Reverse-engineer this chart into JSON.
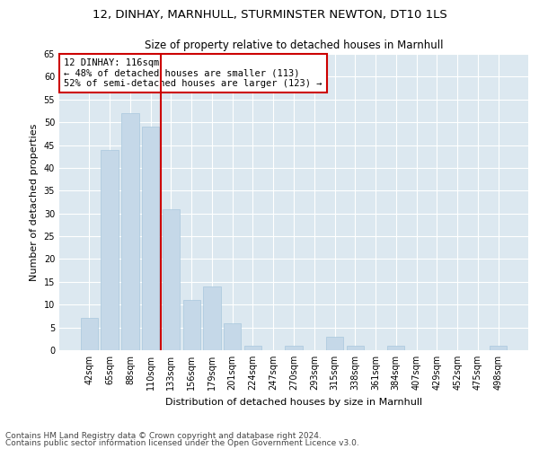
{
  "title1": "12, DINHAY, MARNHULL, STURMINSTER NEWTON, DT10 1LS",
  "title2": "Size of property relative to detached houses in Marnhull",
  "xlabel": "Distribution of detached houses by size in Marnhull",
  "ylabel": "Number of detached properties",
  "categories": [
    "42sqm",
    "65sqm",
    "88sqm",
    "110sqm",
    "133sqm",
    "156sqm",
    "179sqm",
    "201sqm",
    "224sqm",
    "247sqm",
    "270sqm",
    "293sqm",
    "315sqm",
    "338sqm",
    "361sqm",
    "384sqm",
    "407sqm",
    "429sqm",
    "452sqm",
    "475sqm",
    "498sqm"
  ],
  "values": [
    7,
    44,
    52,
    49,
    31,
    11,
    14,
    6,
    1,
    0,
    1,
    0,
    3,
    1,
    0,
    1,
    0,
    0,
    0,
    0,
    1
  ],
  "bar_color": "#c5d8e8",
  "bar_edge_color": "#a8c8de",
  "vline_color": "#cc0000",
  "annotation_text": "12 DINHAY: 116sqm\n← 48% of detached houses are smaller (113)\n52% of semi-detached houses are larger (123) →",
  "annotation_box_color": "#ffffff",
  "annotation_box_edge_color": "#cc0000",
  "ylim": [
    0,
    65
  ],
  "yticks": [
    0,
    5,
    10,
    15,
    20,
    25,
    30,
    35,
    40,
    45,
    50,
    55,
    60,
    65
  ],
  "plot_bg_color": "#dce8f0",
  "footer1": "Contains HM Land Registry data © Crown copyright and database right 2024.",
  "footer2": "Contains public sector information licensed under the Open Government Licence v3.0.",
  "title1_fontsize": 9.5,
  "title2_fontsize": 8.5,
  "xlabel_fontsize": 8,
  "ylabel_fontsize": 8,
  "tick_fontsize": 7,
  "annotation_fontsize": 7.5,
  "footer_fontsize": 6.5
}
